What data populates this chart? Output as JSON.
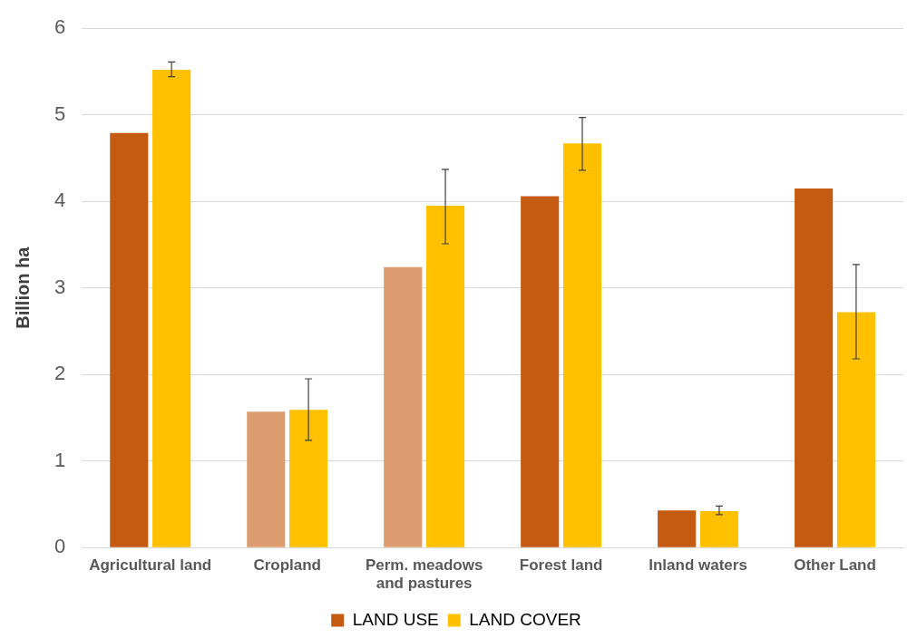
{
  "chart_data": {
    "type": "bar",
    "ylabel": "Billion ha",
    "categories": [
      "Agricultural land",
      "Cropland",
      "Perm. meadows and pastures",
      "Forest land",
      "Inland waters",
      "Other Land"
    ],
    "series": [
      {
        "name": "LAND USE",
        "color": "#c55a11",
        "colors": [
          "#c55a11",
          "#dc9c70",
          "#dc9c70",
          "#c55a11",
          "#c55a11",
          "#c55a11"
        ],
        "values": [
          4.79,
          1.57,
          3.24,
          4.06,
          0.43,
          4.15
        ]
      },
      {
        "name": "LAND COVER",
        "color": "#ffc000",
        "values": [
          5.52,
          1.59,
          3.95,
          4.67,
          0.42,
          2.72
        ],
        "errors": [
          [
            5.44,
            5.61
          ],
          [
            1.24,
            1.95
          ],
          [
            3.51,
            4.37
          ],
          [
            4.36,
            4.97
          ],
          [
            0.38,
            0.48
          ],
          [
            2.18,
            3.27
          ]
        ]
      }
    ],
    "ylim": [
      0,
      6
    ],
    "yticks": [
      0,
      1,
      2,
      3,
      4,
      5,
      6
    ],
    "grid": "y",
    "legend": "bottom"
  }
}
